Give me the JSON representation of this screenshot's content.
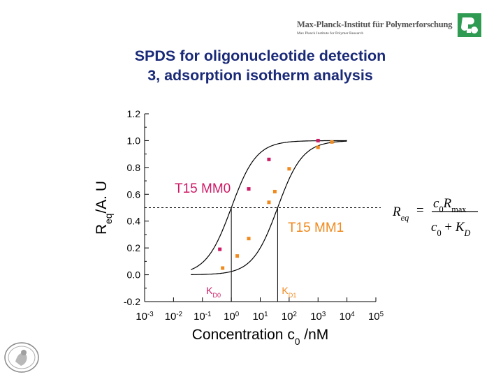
{
  "header": {
    "institute_name": "Max-Planck-Institut für Polymerforschung",
    "institute_subtitle": "Max Planck Institute for Polymer Research"
  },
  "slide": {
    "title_line1": "SPDS for oligonucleotide detection",
    "title_line2": "3, adsorption isotherm analysis"
  },
  "colors": {
    "title": "#1a2a78",
    "logo": "#2e9a52",
    "mm0": "#cc1a66",
    "mm1": "#f08a1e",
    "curve": "#000000"
  },
  "chart_data": {
    "type": "scatter",
    "x_scale": "log",
    "x_ticks": [
      {
        "base": "10",
        "exp": "-3"
      },
      {
        "base": "10",
        "exp": "-2"
      },
      {
        "base": "10",
        "exp": "-1"
      },
      {
        "base": "10",
        "exp": "0"
      },
      {
        "base": "10",
        "exp": "1"
      },
      {
        "base": "10",
        "exp": "2"
      },
      {
        "base": "10",
        "exp": "3"
      },
      {
        "base": "10",
        "exp": "4"
      },
      {
        "base": "10",
        "exp": "5"
      }
    ],
    "xlim_log10": [
      -3,
      5
    ],
    "y_ticks": [
      "-0.2",
      "0.0",
      "0.2",
      "0.4",
      "0.6",
      "0.8",
      "1.0",
      "1.2"
    ],
    "ylim": [
      -0.2,
      1.2
    ],
    "xlabel": {
      "text": "Concentration c",
      "sub": "0",
      "tail": " /nM"
    },
    "ylabel": {
      "r": "R",
      "sub": "eq",
      "tail": "/A. U"
    },
    "grid": false,
    "half_level": 0.5,
    "series": [
      {
        "name": "T15 MM0",
        "color": "#cc1a66",
        "kd": 1.0,
        "points": [
          {
            "x": 0.4,
            "y": 0.19
          },
          {
            "x": 4.0,
            "y": 0.64
          },
          {
            "x": 20,
            "y": 0.86
          },
          {
            "x": 1000,
            "y": 1.0
          }
        ]
      },
      {
        "name": "T15 MM1",
        "color": "#f08a1e",
        "kd": 40,
        "points": [
          {
            "x": 0.5,
            "y": 0.05
          },
          {
            "x": 1.6,
            "y": 0.14
          },
          {
            "x": 4.0,
            "y": 0.27
          },
          {
            "x": 20,
            "y": 0.54
          },
          {
            "x": 32,
            "y": 0.62
          },
          {
            "x": 100,
            "y": 0.79
          },
          {
            "x": 1000,
            "y": 0.95
          },
          {
            "x": 3000,
            "y": 0.99
          }
        ]
      }
    ],
    "kd_labels": [
      {
        "text": "K",
        "sub": "D0"
      },
      {
        "text": "K",
        "sub": "D1"
      }
    ],
    "equation": {
      "lhs": "R",
      "lhs_sub": "eq",
      "eq": "=",
      "num_c": "c",
      "num_c_sub": "0",
      "num_r": "R",
      "num_r_sub": "max",
      "den_c": "c",
      "den_c_sub": "0",
      "den_plus": " + ",
      "den_k": "K",
      "den_k_sub": "D"
    }
  }
}
